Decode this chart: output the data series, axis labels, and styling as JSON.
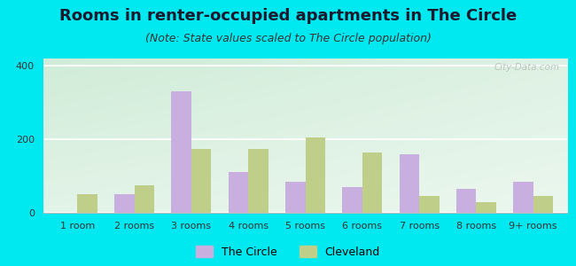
{
  "title": "Rooms in renter-occupied apartments in The Circle",
  "subtitle": "(Note: State values scaled to The Circle population)",
  "categories": [
    "1 room",
    "2 rooms",
    "3 rooms",
    "4 rooms",
    "5 rooms",
    "6 rooms",
    "7 rooms",
    "8 rooms",
    "9+ rooms"
  ],
  "the_circle": [
    0,
    50,
    330,
    110,
    85,
    70,
    160,
    65,
    85
  ],
  "cleveland": [
    50,
    75,
    175,
    175,
    205,
    165,
    45,
    30,
    45
  ],
  "circle_color": "#c9aee0",
  "cleveland_color": "#bfcf8a",
  "background_outer": "#00e8f0",
  "background_plot_topleft": "#d0ecd8",
  "background_plot_white": "#f0f8f0",
  "ylim": [
    0,
    420
  ],
  "yticks": [
    0,
    200,
    400
  ],
  "legend_circle": "The Circle",
  "legend_cleveland": "Cleveland",
  "title_fontsize": 13,
  "subtitle_fontsize": 9,
  "tick_fontsize": 8,
  "legend_fontsize": 9
}
